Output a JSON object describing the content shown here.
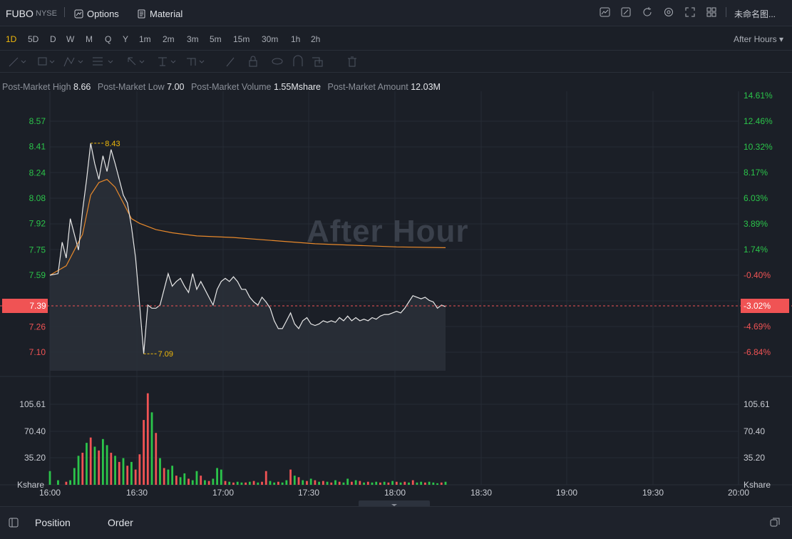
{
  "header": {
    "symbol": "FUBO",
    "exchange": "NYSE",
    "options_label": "Options",
    "material_label": "Material",
    "layout_name": "未命名图..."
  },
  "periods": [
    "1D",
    "5D",
    "D",
    "W",
    "M",
    "Q",
    "Y",
    "1m",
    "2m",
    "3m",
    "5m",
    "15m",
    "30m",
    "1h",
    "2h"
  ],
  "active_period": "1D",
  "session_selector": "After Hours",
  "stats": {
    "high_label": "Post-Market High",
    "high_value": "8.66",
    "low_label": "Post-Market Low",
    "low_value": "7.00",
    "volume_label": "Post-Market Volume",
    "volume_value": "1.55Mshare",
    "amount_label": "Post-Market Amount",
    "amount_value": "12.03M"
  },
  "watermark": "After Hour",
  "colors": {
    "up": "#2bc44a",
    "down": "#f05354",
    "price_line": "#e8e8e8",
    "avg_line": "#e8892b",
    "marker": "#f0b90b"
  },
  "chart_data": {
    "type": "line",
    "price_axis_left": [
      "8.57",
      "8.41",
      "8.24",
      "8.08",
      "7.92",
      "7.75",
      "7.59",
      "7.26",
      "7.10"
    ],
    "price_axis_right": [
      "14.61%",
      "12.46%",
      "10.32%",
      "8.17%",
      "6.03%",
      "3.89%",
      "1.74%",
      "-0.40%",
      "-4.69%",
      "-6.84%"
    ],
    "current_price": "7.39",
    "current_change": "-3.02%",
    "high_marker": "8.43",
    "low_marker": "7.09",
    "volume_axis": [
      "105.61",
      "70.40",
      "35.20"
    ],
    "volume_unit": "Kshare",
    "time_labels": [
      "16:00",
      "16:30",
      "17:00",
      "17:30",
      "18:00",
      "18:30",
      "19:00",
      "19:30",
      "20:00"
    ],
    "price_series": [
      [
        0,
        7.59
      ],
      [
        2,
        7.6
      ],
      [
        3,
        7.8
      ],
      [
        4,
        7.7
      ],
      [
        5,
        7.95
      ],
      [
        6,
        7.85
      ],
      [
        7,
        7.75
      ],
      [
        8,
        8.0
      ],
      [
        9,
        8.2
      ],
      [
        10,
        8.43
      ],
      [
        11,
        8.3
      ],
      [
        12,
        8.2
      ],
      [
        13,
        8.35
      ],
      [
        14,
        8.25
      ],
      [
        15,
        8.39
      ],
      [
        16,
        8.3
      ],
      [
        17,
        8.2
      ],
      [
        18,
        8.1
      ],
      [
        19,
        8.05
      ],
      [
        20,
        7.9
      ],
      [
        21,
        7.7
      ],
      [
        22,
        7.4
      ],
      [
        23,
        7.09
      ],
      [
        24,
        7.4
      ],
      [
        25,
        7.38
      ],
      [
        26,
        7.38
      ],
      [
        27,
        7.4
      ],
      [
        28,
        7.5
      ],
      [
        29,
        7.6
      ],
      [
        30,
        7.52
      ],
      [
        31,
        7.55
      ],
      [
        32,
        7.57
      ],
      [
        33,
        7.52
      ],
      [
        34,
        7.48
      ],
      [
        35,
        7.6
      ],
      [
        36,
        7.5
      ],
      [
        37,
        7.55
      ],
      [
        38,
        7.5
      ],
      [
        39,
        7.45
      ],
      [
        40,
        7.4
      ],
      [
        41,
        7.5
      ],
      [
        42,
        7.55
      ],
      [
        43,
        7.57
      ],
      [
        44,
        7.55
      ],
      [
        45,
        7.58
      ],
      [
        46,
        7.55
      ],
      [
        47,
        7.5
      ],
      [
        48,
        7.5
      ],
      [
        49,
        7.45
      ],
      [
        50,
        7.42
      ],
      [
        51,
        7.4
      ],
      [
        52,
        7.45
      ],
      [
        53,
        7.42
      ],
      [
        54,
        7.38
      ],
      [
        55,
        7.3
      ],
      [
        56,
        7.25
      ],
      [
        57,
        7.25
      ],
      [
        58,
        7.3
      ],
      [
        59,
        7.35
      ],
      [
        60,
        7.28
      ],
      [
        61,
        7.25
      ],
      [
        62,
        7.3
      ],
      [
        63,
        7.32
      ],
      [
        64,
        7.28
      ],
      [
        65,
        7.27
      ],
      [
        66,
        7.28
      ],
      [
        67,
        7.3
      ],
      [
        68,
        7.29
      ],
      [
        69,
        7.3
      ],
      [
        70,
        7.29
      ],
      [
        71,
        7.32
      ],
      [
        72,
        7.3
      ],
      [
        73,
        7.33
      ],
      [
        74,
        7.3
      ],
      [
        75,
        7.32
      ],
      [
        76,
        7.3
      ],
      [
        77,
        7.31
      ],
      [
        78,
        7.3
      ],
      [
        79,
        7.32
      ],
      [
        80,
        7.31
      ],
      [
        81,
        7.33
      ],
      [
        82,
        7.34
      ],
      [
        83,
        7.34
      ],
      [
        84,
        7.35
      ],
      [
        85,
        7.36
      ],
      [
        86,
        7.35
      ],
      [
        87,
        7.38
      ],
      [
        88,
        7.42
      ],
      [
        89,
        7.46
      ],
      [
        90,
        7.45
      ],
      [
        91,
        7.44
      ],
      [
        92,
        7.45
      ],
      [
        93,
        7.43
      ],
      [
        94,
        7.42
      ],
      [
        95,
        7.38
      ],
      [
        96,
        7.4
      ],
      [
        97,
        7.39
      ]
    ],
    "avg_series": [
      [
        0,
        7.59
      ],
      [
        4,
        7.65
      ],
      [
        8,
        7.85
      ],
      [
        10,
        8.1
      ],
      [
        12,
        8.18
      ],
      [
        14,
        8.2
      ],
      [
        16,
        8.15
      ],
      [
        18,
        8.05
      ],
      [
        20,
        7.95
      ],
      [
        22,
        7.92
      ],
      [
        26,
        7.88
      ],
      [
        30,
        7.86
      ],
      [
        36,
        7.84
      ],
      [
        45,
        7.83
      ],
      [
        55,
        7.81
      ],
      [
        65,
        7.79
      ],
      [
        75,
        7.78
      ],
      [
        85,
        7.77
      ],
      [
        97,
        7.765
      ]
    ],
    "volume_bars": [
      [
        0,
        18,
        1
      ],
      [
        2,
        6,
        1
      ],
      [
        4,
        4,
        0
      ],
      [
        5,
        6,
        1
      ],
      [
        6,
        22,
        1
      ],
      [
        7,
        38,
        1
      ],
      [
        8,
        42,
        0
      ],
      [
        9,
        55,
        1
      ],
      [
        10,
        62,
        0
      ],
      [
        11,
        50,
        1
      ],
      [
        12,
        45,
        0
      ],
      [
        13,
        60,
        1
      ],
      [
        14,
        52,
        1
      ],
      [
        15,
        42,
        0
      ],
      [
        16,
        38,
        1
      ],
      [
        17,
        30,
        0
      ],
      [
        18,
        35,
        1
      ],
      [
        19,
        25,
        0
      ],
      [
        20,
        30,
        1
      ],
      [
        21,
        20,
        0
      ],
      [
        22,
        40,
        0
      ],
      [
        23,
        85,
        0
      ],
      [
        24,
        120,
        0
      ],
      [
        25,
        95,
        1
      ],
      [
        26,
        68,
        0
      ],
      [
        27,
        35,
        1
      ],
      [
        28,
        22,
        0
      ],
      [
        29,
        20,
        1
      ],
      [
        30,
        25,
        1
      ],
      [
        31,
        12,
        0
      ],
      [
        32,
        10,
        1
      ],
      [
        33,
        15,
        1
      ],
      [
        34,
        8,
        0
      ],
      [
        35,
        6,
        1
      ],
      [
        36,
        18,
        1
      ],
      [
        37,
        12,
        0
      ],
      [
        38,
        6,
        1
      ],
      [
        39,
        5,
        0
      ],
      [
        40,
        8,
        1
      ],
      [
        41,
        22,
        1
      ],
      [
        42,
        20,
        1
      ],
      [
        43,
        5,
        0
      ],
      [
        44,
        4,
        1
      ],
      [
        45,
        3,
        0
      ],
      [
        46,
        4,
        1
      ],
      [
        47,
        3,
        1
      ],
      [
        48,
        3,
        0
      ],
      [
        49,
        4,
        1
      ],
      [
        50,
        5,
        0
      ],
      [
        51,
        3,
        1
      ],
      [
        52,
        4,
        0
      ],
      [
        53,
        18,
        0
      ],
      [
        54,
        5,
        1
      ],
      [
        55,
        3,
        1
      ],
      [
        56,
        4,
        0
      ],
      [
        57,
        3,
        1
      ],
      [
        58,
        6,
        1
      ],
      [
        59,
        20,
        0
      ],
      [
        60,
        12,
        1
      ],
      [
        61,
        10,
        0
      ],
      [
        62,
        6,
        1
      ],
      [
        63,
        5,
        0
      ],
      [
        64,
        8,
        1
      ],
      [
        65,
        6,
        0
      ],
      [
        66,
        4,
        1
      ],
      [
        67,
        5,
        0
      ],
      [
        68,
        4,
        1
      ],
      [
        69,
        3,
        0
      ],
      [
        70,
        6,
        1
      ],
      [
        71,
        4,
        0
      ],
      [
        72,
        3,
        1
      ],
      [
        73,
        8,
        1
      ],
      [
        74,
        4,
        0
      ],
      [
        75,
        6,
        1
      ],
      [
        76,
        5,
        0
      ],
      [
        77,
        3,
        1
      ],
      [
        78,
        4,
        0
      ],
      [
        79,
        3,
        1
      ],
      [
        80,
        4,
        1
      ],
      [
        81,
        3,
        0
      ],
      [
        82,
        4,
        1
      ],
      [
        83,
        3,
        0
      ],
      [
        84,
        5,
        1
      ],
      [
        85,
        4,
        0
      ],
      [
        86,
        3,
        1
      ],
      [
        87,
        4,
        0
      ],
      [
        88,
        3,
        1
      ],
      [
        89,
        6,
        0
      ],
      [
        90,
        3,
        1
      ],
      [
        91,
        4,
        1
      ],
      [
        92,
        3,
        0
      ],
      [
        93,
        4,
        1
      ],
      [
        94,
        3,
        1
      ],
      [
        95,
        2,
        1
      ],
      [
        96,
        3,
        0
      ],
      [
        97,
        4,
        1
      ]
    ]
  },
  "bottom": {
    "position_tab": "Position",
    "order_tab": "Order"
  }
}
